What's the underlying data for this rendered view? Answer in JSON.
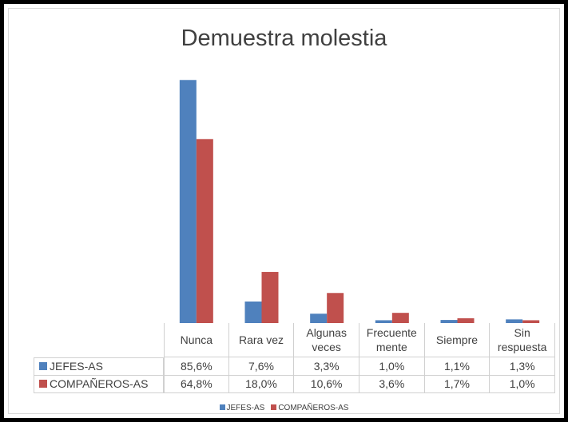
{
  "chart_data": {
    "type": "bar",
    "title": "Demuestra molestia",
    "categories": [
      "Nunca",
      "Rara vez",
      "Algunas\nveces",
      "Frecuente\nmente",
      "Siempre",
      "Sin\nrespuesta"
    ],
    "series": [
      {
        "name": "JEFES-AS",
        "color": "#4f81bd",
        "values": [
          85.6,
          7.6,
          3.3,
          1.0,
          1.1,
          1.3
        ],
        "value_labels": [
          "85,6%",
          "7,6%",
          "3,3%",
          "1,0%",
          "1,1%",
          "1,3%"
        ]
      },
      {
        "name": "COMPAÑEROS-AS",
        "color": "#c0504d",
        "values": [
          64.8,
          18.0,
          10.6,
          3.6,
          1.7,
          1.0
        ],
        "value_labels": [
          "64,8%",
          "18,0%",
          "10,6%",
          "3,6%",
          "1,7%",
          "1,0%"
        ]
      }
    ]
  }
}
